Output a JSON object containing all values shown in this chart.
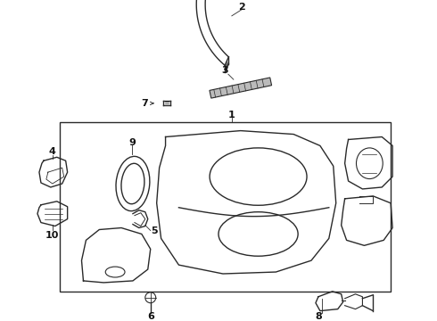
{
  "bg_color": "#ffffff",
  "line_color": "#2a2a2a",
  "label_color": "#111111",
  "fig_width": 4.9,
  "fig_height": 3.6,
  "dpi": 100
}
